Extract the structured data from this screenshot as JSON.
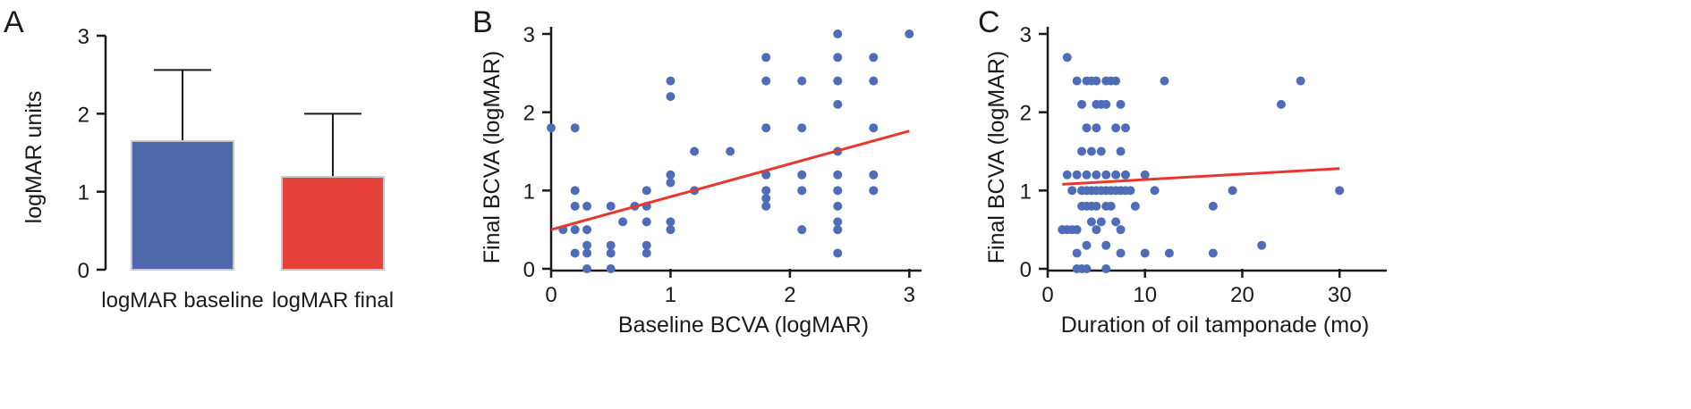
{
  "chart_data": [
    {
      "type": "bar",
      "panel_letter": "A",
      "categories": [
        "logMAR baseline",
        "logMAR final"
      ],
      "values": [
        1.65,
        1.19
      ],
      "error_upper": [
        2.56,
        2.0
      ],
      "colors": [
        "#4f67ab",
        "#e5403a"
      ],
      "ylabel": "logMAR units",
      "xlabel": "",
      "ylim": [
        0,
        3
      ],
      "yticks": [
        0,
        1,
        2,
        3
      ],
      "grid": false
    },
    {
      "type": "scatter",
      "panel_letter": "B",
      "xlabel": "Baseline BCVA (logMAR)",
      "ylabel": "Final BCVA (logMAR)",
      "xlim": [
        0,
        3.05
      ],
      "ylim": [
        0,
        3
      ],
      "xticks": [
        0,
        1,
        2,
        3
      ],
      "yticks": [
        0,
        1,
        2,
        3
      ],
      "grid": false,
      "point_color": "#4f6cb8",
      "fit_color": "#e8382d",
      "points": [
        [
          0,
          1.8
        ],
        [
          0.1,
          0.5
        ],
        [
          0.2,
          1.8
        ],
        [
          0.2,
          1.0
        ],
        [
          0.2,
          0.8
        ],
        [
          0.2,
          0.5
        ],
        [
          0.2,
          0.2
        ],
        [
          0.3,
          0.8
        ],
        [
          0.3,
          0.5
        ],
        [
          0.3,
          0.3
        ],
        [
          0.3,
          0.2
        ],
        [
          0.3,
          0.0
        ],
        [
          0.5,
          0.8
        ],
        [
          0.5,
          0.3
        ],
        [
          0.5,
          0.2
        ],
        [
          0.5,
          0.0
        ],
        [
          0.6,
          0.6
        ],
        [
          0.7,
          0.8
        ],
        [
          0.8,
          1.0
        ],
        [
          0.8,
          0.8
        ],
        [
          0.8,
          0.6
        ],
        [
          0.8,
          0.3
        ],
        [
          0.8,
          0.2
        ],
        [
          1.0,
          2.4
        ],
        [
          1.0,
          2.2
        ],
        [
          1.0,
          1.2
        ],
        [
          1.0,
          1.1
        ],
        [
          1.0,
          0.6
        ],
        [
          1.0,
          0.5
        ],
        [
          1.2,
          1.5
        ],
        [
          1.2,
          1.0
        ],
        [
          1.5,
          1.5
        ],
        [
          1.8,
          2.7
        ],
        [
          1.8,
          2.4
        ],
        [
          1.8,
          1.8
        ],
        [
          1.8,
          1.2
        ],
        [
          1.8,
          1.0
        ],
        [
          1.8,
          0.9
        ],
        [
          1.8,
          0.8
        ],
        [
          2.1,
          2.4
        ],
        [
          2.1,
          1.8
        ],
        [
          2.1,
          1.2
        ],
        [
          2.1,
          1.0
        ],
        [
          2.1,
          0.5
        ],
        [
          2.4,
          3.0
        ],
        [
          2.4,
          2.7
        ],
        [
          2.4,
          2.4
        ],
        [
          2.4,
          2.1
        ],
        [
          2.4,
          1.5
        ],
        [
          2.4,
          1.2
        ],
        [
          2.4,
          1.0
        ],
        [
          2.4,
          0.8
        ],
        [
          2.4,
          0.6
        ],
        [
          2.4,
          0.5
        ],
        [
          2.4,
          0.2
        ],
        [
          2.7,
          2.7
        ],
        [
          2.7,
          2.4
        ],
        [
          2.7,
          1.8
        ],
        [
          2.7,
          1.2
        ],
        [
          2.7,
          1.0
        ],
        [
          3.0,
          3.0
        ]
      ],
      "fit_line": [
        [
          0,
          0.5
        ],
        [
          3.0,
          1.76
        ]
      ]
    },
    {
      "type": "scatter",
      "panel_letter": "C",
      "xlabel": "Duration of oil tamponade (mo)",
      "ylabel": "Final BCVA (logMAR)",
      "xlim": [
        0,
        35.5
      ],
      "ylim": [
        0,
        3
      ],
      "xticks": [
        0,
        10,
        20,
        30
      ],
      "yticks": [
        0,
        1,
        2,
        3
      ],
      "grid": false,
      "point_color": "#4f6cb8",
      "fit_color": "#e8382d",
      "points": [
        [
          1.5,
          0.5
        ],
        [
          2,
          2.7
        ],
        [
          2,
          1.2
        ],
        [
          2,
          0.5
        ],
        [
          2.5,
          1.0
        ],
        [
          2.5,
          0.5
        ],
        [
          3,
          2.4
        ],
        [
          3,
          1.2
        ],
        [
          3,
          0.5
        ],
        [
          3,
          0.2
        ],
        [
          3,
          0.0
        ],
        [
          3.5,
          2.1
        ],
        [
          3.5,
          1.5
        ],
        [
          3.5,
          1.0
        ],
        [
          3.5,
          0.8
        ],
        [
          3.5,
          0.0
        ],
        [
          4,
          2.4
        ],
        [
          4,
          1.8
        ],
        [
          4,
          1.2
        ],
        [
          4,
          1.0
        ],
        [
          4,
          0.8
        ],
        [
          4,
          0.3
        ],
        [
          4,
          0.0
        ],
        [
          4.5,
          2.4
        ],
        [
          4.5,
          1.5
        ],
        [
          4.5,
          1.0
        ],
        [
          4.5,
          0.8
        ],
        [
          4.5,
          0.6
        ],
        [
          5,
          2.4
        ],
        [
          5,
          2.1
        ],
        [
          5,
          1.8
        ],
        [
          5,
          1.2
        ],
        [
          5,
          1.0
        ],
        [
          5,
          0.8
        ],
        [
          5,
          0.5
        ],
        [
          5.5,
          2.1
        ],
        [
          5.5,
          1.5
        ],
        [
          5.5,
          1.0
        ],
        [
          5.5,
          0.6
        ],
        [
          6,
          2.4
        ],
        [
          6,
          2.1
        ],
        [
          6,
          1.2
        ],
        [
          6,
          1.0
        ],
        [
          6,
          0.8
        ],
        [
          6,
          0.3
        ],
        [
          6,
          0.0
        ],
        [
          6.5,
          2.4
        ],
        [
          6.5,
          1.0
        ],
        [
          6.5,
          0.8
        ],
        [
          7,
          2.4
        ],
        [
          7,
          1.8
        ],
        [
          7,
          1.2
        ],
        [
          7,
          1.0
        ],
        [
          7,
          0.6
        ],
        [
          7.5,
          2.1
        ],
        [
          7.5,
          1.5
        ],
        [
          7.5,
          1.0
        ],
        [
          7.5,
          0.5
        ],
        [
          7.5,
          0.2
        ],
        [
          8,
          1.8
        ],
        [
          8,
          1.2
        ],
        [
          8,
          1.0
        ],
        [
          8.5,
          1.0
        ],
        [
          9,
          0.8
        ],
        [
          10,
          1.2
        ],
        [
          10,
          0.2
        ],
        [
          11,
          1.0
        ],
        [
          12,
          2.4
        ],
        [
          12.5,
          0.2
        ],
        [
          17,
          0.8
        ],
        [
          17,
          0.2
        ],
        [
          19,
          1.0
        ],
        [
          22,
          0.3
        ],
        [
          24,
          2.1
        ],
        [
          26,
          2.4
        ],
        [
          30,
          1.0
        ]
      ],
      "fit_line": [
        [
          1.5,
          1.08
        ],
        [
          30,
          1.28
        ]
      ]
    }
  ]
}
